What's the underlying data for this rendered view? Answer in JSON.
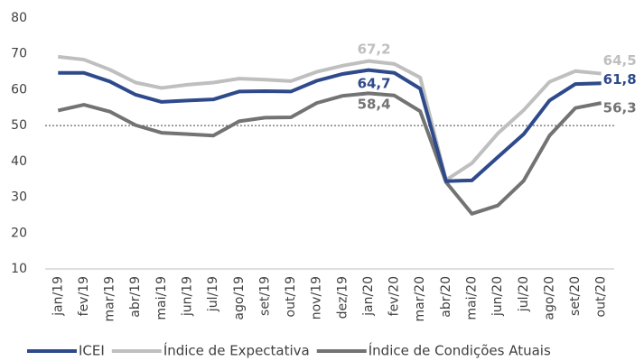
{
  "chart_data": {
    "type": "line",
    "categories": [
      "jan/19",
      "fev/19",
      "mar/19",
      "abr/19",
      "mai/19",
      "jun/19",
      "jul/19",
      "ago/19",
      "set/19",
      "out/19",
      "nov/19",
      "dez/19",
      "jan/20",
      "fev/20",
      "mar/20",
      "abr/20",
      "mai/20",
      "jun/20",
      "jul/20",
      "ago/20",
      "set/20",
      "out/20"
    ],
    "series": [
      {
        "name": "ICEI",
        "color": "#2e4a8c",
        "values": [
          64.7,
          64.7,
          62.3,
          58.6,
          56.6,
          57.0,
          57.3,
          59.5,
          59.6,
          59.5,
          62.5,
          64.4,
          65.5,
          64.7,
          60.3,
          34.5,
          34.7,
          41.2,
          47.6,
          57.0,
          61.6,
          61.8
        ],
        "value_labels": [
          null,
          null,
          null,
          null,
          null,
          null,
          null,
          null,
          null,
          null,
          null,
          null,
          null,
          "64,7",
          null,
          null,
          null,
          null,
          null,
          null,
          null,
          "61,8"
        ]
      },
      {
        "name": "Índice de Expectativa",
        "color": "#bfbfbf",
        "values": [
          69.2,
          68.4,
          65.6,
          62.0,
          60.5,
          61.4,
          62.0,
          63.1,
          62.8,
          62.4,
          65.0,
          66.7,
          68.0,
          67.2,
          63.4,
          34.8,
          39.5,
          47.8,
          54.3,
          62.2,
          65.2,
          64.5
        ],
        "value_labels": [
          null,
          null,
          null,
          null,
          null,
          null,
          null,
          null,
          null,
          null,
          null,
          null,
          null,
          "67,2",
          null,
          null,
          null,
          null,
          null,
          null,
          null,
          "64,5"
        ]
      },
      {
        "name": "Índice de Condições Atuais",
        "color": "#737373",
        "values": [
          54.2,
          55.8,
          53.9,
          50.1,
          48.0,
          47.6,
          47.2,
          51.2,
          52.2,
          52.3,
          56.3,
          58.3,
          59.0,
          58.4,
          54.0,
          34.2,
          25.4,
          27.7,
          34.6,
          47.2,
          54.9,
          56.3
        ],
        "value_labels": [
          null,
          null,
          null,
          null,
          null,
          null,
          null,
          null,
          null,
          null,
          null,
          null,
          null,
          "58,4",
          null,
          null,
          null,
          null,
          null,
          null,
          null,
          "56,3"
        ]
      }
    ],
    "ylim": [
      10,
      80
    ],
    "yticks": [
      10,
      20,
      30,
      40,
      50,
      60,
      70,
      80
    ],
    "hline": 50,
    "grid": false,
    "legend": "bottom"
  }
}
